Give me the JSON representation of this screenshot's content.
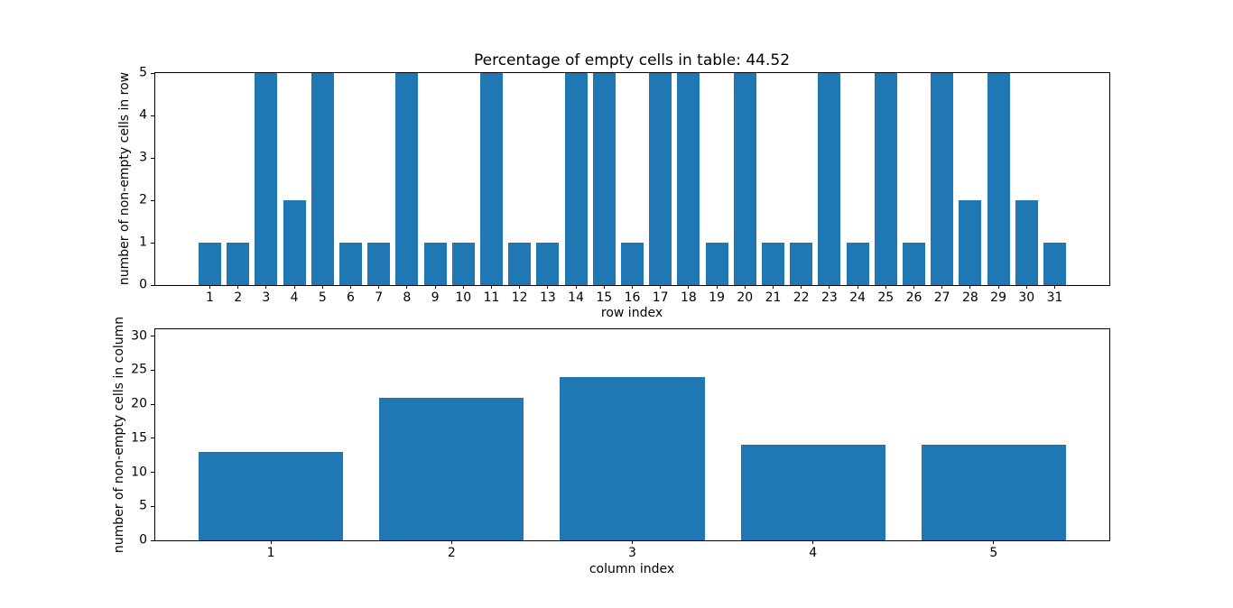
{
  "figure": {
    "background": "#ffffff",
    "bar_color": "#1f77b4",
    "text_color": "#000000"
  },
  "chart_data": [
    {
      "type": "bar",
      "title": "Percentage of empty cells in table: 44.52",
      "xlabel": "row index",
      "ylabel": "number of non-empty cells in row",
      "categories": [
        1,
        2,
        3,
        4,
        5,
        6,
        7,
        8,
        9,
        10,
        11,
        12,
        13,
        14,
        15,
        16,
        17,
        18,
        19,
        20,
        21,
        22,
        23,
        24,
        25,
        26,
        27,
        28,
        29,
        30,
        31
      ],
      "values": [
        1,
        1,
        5,
        2,
        5,
        1,
        1,
        5,
        1,
        1,
        5,
        1,
        1,
        5,
        5,
        1,
        5,
        5,
        1,
        5,
        1,
        1,
        5,
        1,
        5,
        1,
        5,
        2,
        5,
        2,
        1
      ],
      "bar_width": 0.8,
      "xlim": [
        -0.94,
        32.94
      ],
      "ylim": [
        0,
        5
      ],
      "yticks": [
        0,
        1,
        2,
        3,
        4,
        5
      ],
      "grid": false,
      "legend": null
    },
    {
      "type": "bar",
      "title": "",
      "xlabel": "column index",
      "ylabel": "number of non-empty cells in column",
      "categories": [
        1,
        2,
        3,
        4,
        5
      ],
      "values": [
        13,
        21,
        24,
        14,
        14
      ],
      "bar_width": 0.8,
      "xlim": [
        0.36,
        5.64
      ],
      "ylim": [
        0,
        31
      ],
      "yticks": [
        0,
        5,
        10,
        15,
        20,
        25,
        30
      ],
      "grid": false,
      "legend": null
    }
  ]
}
